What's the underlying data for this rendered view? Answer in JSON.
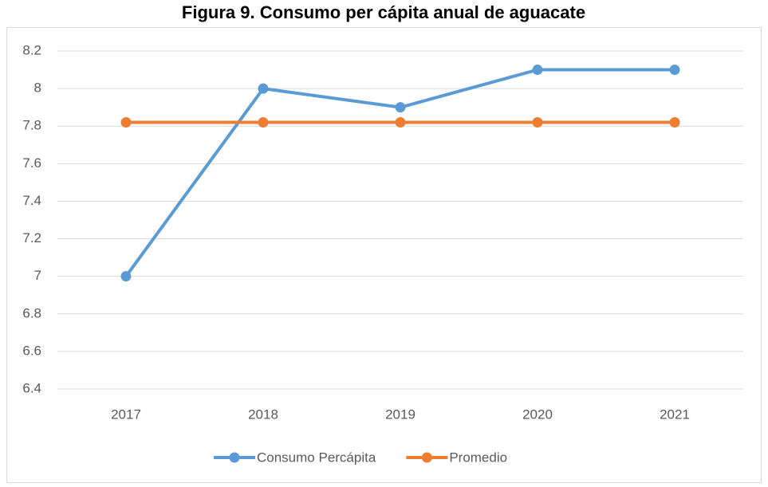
{
  "chart_data": {
    "type": "line",
    "title": "Figura 9. Consumo per cápita anual de aguacate",
    "categories": [
      "2017",
      "2018",
      "2019",
      "2020",
      "2021"
    ],
    "series": [
      {
        "name": "Consumo Percápita",
        "color": "#5b9bd5",
        "values": [
          7,
          8,
          7.9,
          8.1,
          8.1
        ]
      },
      {
        "name": "Promedio",
        "color": "#ed7d31",
        "values": [
          7.82,
          7.82,
          7.82,
          7.82,
          7.82
        ]
      }
    ],
    "ylim": [
      6.4,
      8.2
    ],
    "yticks": [
      6.4,
      6.6,
      6.8,
      7,
      7.2,
      7.4,
      7.6,
      7.8,
      8,
      8.2
    ],
    "grid": true,
    "legend": "bottom"
  }
}
